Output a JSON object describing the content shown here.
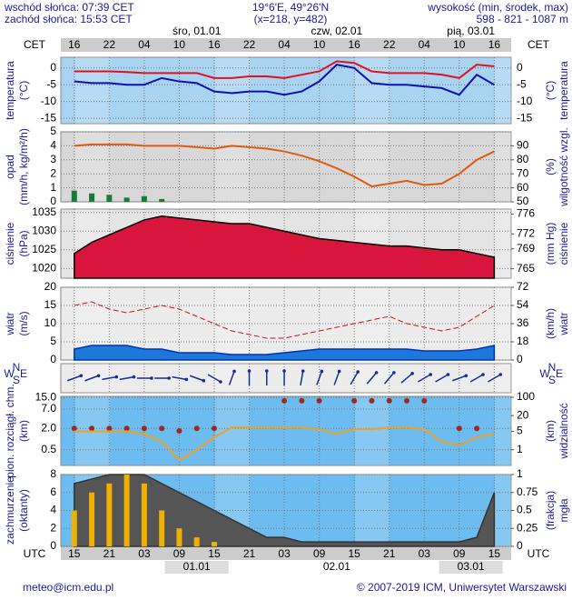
{
  "header": {
    "sunrise": "wschód słońca: 07:39 CET",
    "sunset": "zachód słońca: 15:53 CET",
    "coords": "19°6'E, 49°26'N",
    "grid": "(x=218, y=482)",
    "height_label": "wysokość (min, środek, max)",
    "height_values": "598 - 821 - 1087 m"
  },
  "time_axis": {
    "xlim": [
      -2.3,
      74.9
    ],
    "top_label": "CET",
    "bottom_label": "UTC",
    "cet_ticks": [
      {
        "value": 0,
        "label": "16"
      },
      {
        "value": 6,
        "label": "22"
      },
      {
        "value": 12,
        "label": "04"
      },
      {
        "value": 18,
        "label": "10"
      },
      {
        "value": 24,
        "label": "16"
      },
      {
        "value": 30,
        "label": "22"
      },
      {
        "value": 36,
        "label": "04"
      },
      {
        "value": 42,
        "label": "10"
      },
      {
        "value": 48,
        "label": "16"
      },
      {
        "value": 54,
        "label": "22"
      },
      {
        "value": 60,
        "label": "04"
      },
      {
        "value": 66,
        "label": "10"
      },
      {
        "value": 72,
        "label": "16"
      }
    ],
    "utc_ticks": [
      {
        "value": 0,
        "label": "15"
      },
      {
        "value": 6,
        "label": "21"
      },
      {
        "value": 12,
        "label": "03"
      },
      {
        "value": 18,
        "label": "09"
      },
      {
        "value": 24,
        "label": "15"
      },
      {
        "value": 30,
        "label": "21"
      },
      {
        "value": 36,
        "label": "03"
      },
      {
        "value": 42,
        "label": "09"
      },
      {
        "value": 48,
        "label": "15"
      },
      {
        "value": 54,
        "label": "21"
      },
      {
        "value": 60,
        "label": "03"
      },
      {
        "value": 66,
        "label": "09"
      },
      {
        "value": 72,
        "label": "15"
      }
    ],
    "top_days": [
      {
        "value": 21,
        "label": "śro, 01.01"
      },
      {
        "value": 45,
        "label": "czw, 02.01"
      },
      {
        "value": 68,
        "label": "pią, 03.01"
      }
    ],
    "bottom_days": [
      {
        "value": 21,
        "label": "01.01"
      },
      {
        "value": 45,
        "label": "02.01"
      },
      {
        "value": 68,
        "label": "03.01"
      }
    ]
  },
  "chart_data": [
    {
      "type": "line",
      "background": "#a8d4f2",
      "ylabel": [
        "temperatura",
        "(°C)"
      ],
      "y2label": [
        "(°C)",
        "temperatura"
      ],
      "ylim": [
        -16.6,
        3.2
      ],
      "yticks": [
        0,
        -5,
        -10,
        -15
      ],
      "grid": true,
      "x": [
        0,
        3,
        6,
        9,
        12,
        15,
        18,
        21,
        24,
        27,
        30,
        33,
        36,
        39,
        42,
        45,
        48,
        51,
        54,
        57,
        60,
        63,
        66,
        69,
        72
      ],
      "series": [
        {
          "mark": "line",
          "color": "#e0101e",
          "values": [
            -1,
            -1,
            -1,
            -1.2,
            -1.5,
            -1.5,
            -1.5,
            -1.5,
            -3,
            -3,
            -2.5,
            -2.5,
            -3,
            -2,
            -1,
            2,
            1.5,
            -1,
            -1.5,
            -1.5,
            -1.5,
            -2,
            -3,
            1,
            0.5
          ]
        },
        {
          "mark": "line",
          "color": "#1010b0",
          "values": [
            -4,
            -4.5,
            -4.5,
            -5,
            -5,
            -3,
            -4,
            -4.5,
            -7,
            -7.5,
            -7,
            -7,
            -8,
            -7,
            -4,
            1,
            0,
            -4.5,
            -5,
            -5,
            -5.5,
            -6,
            -8,
            -2,
            -5
          ]
        }
      ]
    },
    {
      "type": "line",
      "background": "#d8d8d8",
      "ylabel": [
        "opad",
        "(mm/h, kg/m²/h)"
      ],
      "y2label": [
        "(%)",
        "wilgotność wzgl."
      ],
      "ylim": [
        0,
        5
      ],
      "yticks": [
        5,
        4,
        3,
        2,
        1,
        0
      ],
      "y2lim": [
        50,
        100
      ],
      "y2ticks": [
        90,
        80,
        70,
        60,
        50
      ],
      "grid": true,
      "x": [
        0,
        3,
        6,
        9,
        12,
        15,
        18,
        21,
        24,
        27,
        30,
        33,
        36,
        39,
        42,
        45,
        48,
        51,
        54,
        57,
        60,
        63,
        66,
        69,
        72
      ],
      "series": [
        {
          "mark": "bar",
          "color": "#1a7a3a",
          "values": [
            0.8,
            0.6,
            0.5,
            0.3,
            0.4,
            0.2,
            0,
            0,
            0,
            0,
            0,
            0,
            0,
            0,
            0,
            0,
            0,
            0,
            0,
            0,
            0,
            0,
            0,
            0,
            0
          ]
        },
        {
          "mark": "line",
          "axis": "y2",
          "color": "#e05a10",
          "values": [
            90,
            91,
            91,
            91,
            90,
            90,
            90,
            89,
            88,
            90,
            89,
            88,
            86,
            83,
            79,
            74,
            68,
            61,
            63,
            65,
            62,
            63,
            70,
            80,
            86
          ]
        }
      ]
    },
    {
      "type": "line",
      "background": "#e4e4e4",
      "ylabel": [
        "ciśnienie",
        "(hPa)"
      ],
      "y2label": [
        "(mm Hg)",
        "ciśnienie"
      ],
      "ylim": [
        1017.4,
        1035.9
      ],
      "yticks": [
        1035,
        1030,
        1025,
        1020
      ],
      "y2lim": [
        763.1,
        777
      ],
      "y2ticks": [
        776,
        772,
        769,
        765
      ],
      "grid": true,
      "x": [
        0,
        3,
        6,
        9,
        12,
        15,
        18,
        21,
        24,
        27,
        30,
        33,
        36,
        39,
        42,
        45,
        48,
        51,
        54,
        57,
        60,
        63,
        66,
        69,
        72
      ],
      "series": [
        {
          "mark": "area",
          "color": "#000000",
          "fill": "#d8163c",
          "values": [
            1024,
            1027,
            1029,
            1031,
            1033,
            1034,
            1033.5,
            1033,
            1032.5,
            1032,
            1032,
            1031,
            1030,
            1029,
            1028,
            1027.5,
            1027,
            1026.5,
            1026,
            1026,
            1025.5,
            1025,
            1025,
            1024,
            1023
          ]
        }
      ]
    },
    {
      "type": "line",
      "background": "#ececec",
      "ylabel": [
        "wiatr",
        "(m/s)"
      ],
      "y2label": [
        "(km/h)",
        "wiatr"
      ],
      "ylim": [
        0,
        20
      ],
      "yticks": [
        20,
        15,
        10,
        5,
        0
      ],
      "y2lim": [
        0,
        72
      ],
      "y2ticks": [
        72,
        54,
        36,
        18,
        0
      ],
      "grid": true,
      "x": [
        0,
        3,
        6,
        9,
        12,
        15,
        18,
        21,
        24,
        27,
        30,
        33,
        36,
        39,
        42,
        45,
        48,
        51,
        54,
        57,
        60,
        63,
        66,
        69,
        72
      ],
      "series": [
        {
          "mark": "dash",
          "color": "#d01010",
          "values": [
            15,
            16,
            14,
            13,
            14,
            15,
            14,
            12,
            10,
            8,
            7,
            6,
            6,
            7,
            8,
            9,
            10,
            11,
            12,
            10,
            9,
            8,
            9,
            12,
            15
          ]
        },
        {
          "mark": "area",
          "color": "#0030c0",
          "fill": "#1e78d8",
          "values": [
            3,
            4,
            4,
            4,
            3,
            3,
            2,
            2,
            2,
            1.5,
            1.5,
            1.5,
            2,
            2.5,
            3,
            3,
            3,
            3,
            3,
            3,
            2.5,
            2.5,
            2.5,
            3,
            4
          ]
        }
      ]
    },
    {
      "type": "vector",
      "background": "#ececec",
      "compass": {
        "n": "N",
        "s": "S",
        "w": "W",
        "e": "E"
      },
      "x": [
        0,
        3,
        6,
        9,
        12,
        15,
        18,
        21,
        24,
        27,
        30,
        33,
        36,
        39,
        42,
        45,
        48,
        51,
        54,
        57,
        60,
        63,
        66,
        69,
        72
      ],
      "series": [
        {
          "color": "#1a2a9a",
          "values": [
            250,
            250,
            260,
            260,
            270,
            270,
            280,
            290,
            300,
            200,
            180,
            180,
            180,
            190,
            200,
            200,
            210,
            220,
            220,
            230,
            240,
            240,
            250,
            240,
            240
          ]
        }
      ]
    },
    {
      "type": "line",
      "background": "#6cbcf0",
      "log": true,
      "ylabel": [
        "pion. rozciągł. chm.",
        "(km)"
      ],
      "y2label": [
        "(km)",
        "widzialność"
      ],
      "ylim": [
        0.18,
        16
      ],
      "yticks": [
        {
          "value": 15,
          "label": "15.0"
        },
        {
          "value": 7,
          "label": "7.0"
        },
        {
          "value": 2,
          "label": "2.0"
        },
        0.5
      ],
      "y2lim": [
        0.25,
        108
      ],
      "y2ticks": [
        100,
        20,
        5,
        1
      ],
      "grid": true,
      "x": [
        0,
        3,
        6,
        9,
        12,
        15,
        18,
        21,
        24,
        27,
        30,
        33,
        36,
        39,
        42,
        45,
        48,
        51,
        54,
        57,
        60,
        63,
        66,
        69,
        72
      ],
      "series": [
        {
          "mark": "dots",
          "color": "#9a2a20",
          "values": [
            2,
            2,
            2,
            2,
            2,
            2,
            1.7,
            2,
            2,
            null,
            null,
            null,
            12,
            12,
            12,
            null,
            12,
            12,
            12,
            12,
            12,
            null,
            2,
            2,
            null
          ]
        },
        {
          "mark": "line",
          "axis": "y2",
          "color": "#f0a020",
          "values": [
            5,
            5,
            5,
            5,
            4,
            2,
            0.4,
            1,
            3,
            7,
            7,
            7,
            7,
            7,
            6,
            4,
            6,
            6,
            7,
            7,
            6,
            2,
            1.5,
            3,
            4
          ]
        }
      ]
    },
    {
      "type": "line",
      "background": "#6cbcf0",
      "ylabel": [
        "zachmurzenie",
        "(oktanty)"
      ],
      "y2label": [
        "(frakcja)",
        "mgła"
      ],
      "ylim": [
        0,
        8
      ],
      "yticks": [
        8,
        6,
        4,
        2,
        0
      ],
      "y2lim": [
        0,
        1
      ],
      "y2ticks": [
        1,
        0.75,
        0.5,
        0.25,
        0
      ],
      "grid": true,
      "x": [
        0,
        3,
        6,
        9,
        12,
        15,
        18,
        21,
        24,
        27,
        30,
        33,
        36,
        39,
        42,
        45,
        48,
        51,
        54,
        57,
        60,
        63,
        66,
        69,
        72
      ],
      "series": [
        {
          "mark": "area",
          "color": "#333333",
          "fill": "#555555",
          "values": [
            7,
            7.5,
            8,
            8,
            8,
            7,
            6,
            5,
            4,
            3,
            2,
            1,
            1,
            0.5,
            0.5,
            0.5,
            0.5,
            0.5,
            0.5,
            0.5,
            0.5,
            0.5,
            0.5,
            1,
            6
          ]
        },
        {
          "mark": "bar",
          "color": "#f0b000",
          "values": [
            4,
            6,
            7,
            8,
            7,
            4,
            2,
            1,
            0.5,
            0,
            0,
            0,
            0,
            0,
            0,
            0,
            0,
            0,
            0,
            0,
            0,
            0,
            0,
            0,
            0
          ]
        }
      ]
    }
  ],
  "footer": {
    "email": "meteo@icm.edu.pl",
    "copyright": "© 2007-2019 ICM, Uniwersytet Warszawski"
  }
}
